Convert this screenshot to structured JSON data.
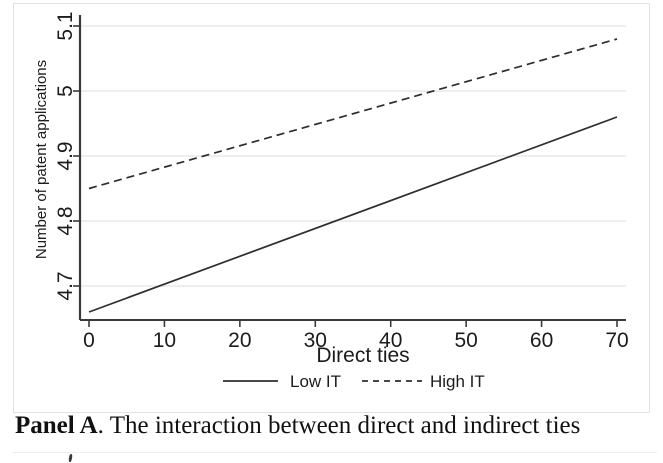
{
  "caption": {
    "bold": "Panel A",
    "rest": ". The interaction between direct and indirect ties"
  },
  "colors": {
    "line": "#2e2e2e",
    "axis": "#3a3a3a",
    "grid": "#e9e9e9",
    "text": "#1c1c1c",
    "figure_border": "#e2e2e2"
  },
  "chart_data": {
    "type": "line",
    "title": "",
    "xlabel": "Direct ties",
    "ylabel": "Number of patent applications",
    "xlim": [
      0,
      70
    ],
    "ylim": [
      4.65,
      5.12
    ],
    "xticks": [
      0,
      10,
      20,
      30,
      40,
      50,
      60,
      70
    ],
    "ytick_values": [
      4.7,
      4.8,
      4.9,
      5,
      5.1
    ],
    "ytick_labels": [
      "4.7",
      "4.8",
      "4.9",
      "5",
      "5.1"
    ],
    "grid": "horizontal",
    "legend_position": "bottom-center",
    "series": [
      {
        "name": "Low IT",
        "line_style": "solid",
        "x": [
          0,
          70
        ],
        "y": [
          4.66,
          4.96
        ]
      },
      {
        "name": "High IT",
        "line_style": "dashed",
        "x": [
          0,
          70
        ],
        "y": [
          4.85,
          5.08
        ]
      }
    ]
  }
}
